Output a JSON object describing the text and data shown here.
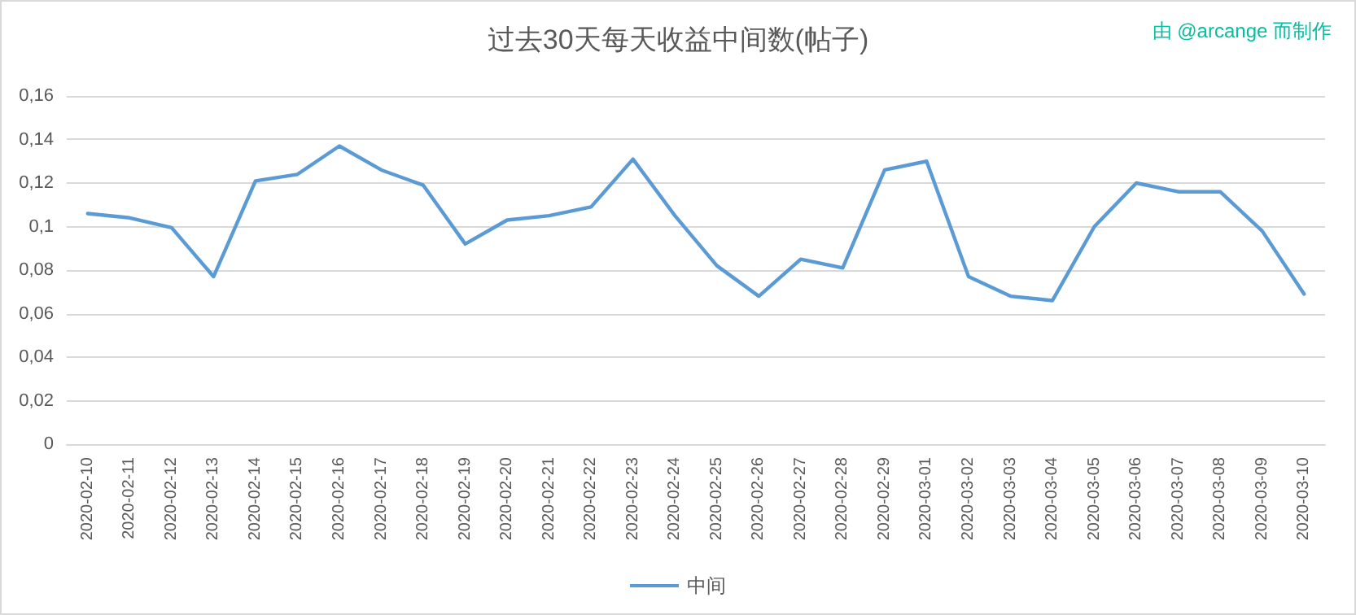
{
  "chart_data": {
    "type": "line",
    "title": "过去30天每天收益中间数(帖子)",
    "annotations": [
      "由 @arcange 而制作"
    ],
    "categories": [
      "2020-02-10",
      "2020-02-11",
      "2020-02-12",
      "2020-02-13",
      "2020-02-14",
      "2020-02-15",
      "2020-02-16",
      "2020-02-17",
      "2020-02-18",
      "2020-02-19",
      "2020-02-20",
      "2020-02-21",
      "2020-02-22",
      "2020-02-23",
      "2020-02-24",
      "2020-02-25",
      "2020-02-26",
      "2020-02-27",
      "2020-02-28",
      "2020-02-29",
      "2020-03-01",
      "2020-03-02",
      "2020-03-03",
      "2020-03-04",
      "2020-03-05",
      "2020-03-06",
      "2020-03-07",
      "2020-03-08",
      "2020-03-09",
      "2020-03-10"
    ],
    "series": [
      {
        "name": "中间",
        "color": "#5b9bd5",
        "values": [
          0.106,
          0.104,
          0.0995,
          0.077,
          0.121,
          0.124,
          0.137,
          0.126,
          0.119,
          0.092,
          0.103,
          0.105,
          0.109,
          0.131,
          0.105,
          0.082,
          0.068,
          0.085,
          0.081,
          0.126,
          0.13,
          0.077,
          0.068,
          0.066,
          0.1,
          0.12,
          0.116,
          0.116,
          0.098,
          0.069
        ]
      }
    ],
    "ylim": [
      0,
      0.16
    ],
    "yticks": [
      {
        "value": 0,
        "label": "0"
      },
      {
        "value": 0.02,
        "label": "0,02"
      },
      {
        "value": 0.04,
        "label": "0,04"
      },
      {
        "value": 0.06,
        "label": "0,06"
      },
      {
        "value": 0.08,
        "label": "0,08"
      },
      {
        "value": 0.1,
        "label": "0,1"
      },
      {
        "value": 0.12,
        "label": "0,12"
      },
      {
        "value": 0.14,
        "label": "0,14"
      },
      {
        "value": 0.16,
        "label": "0,16"
      }
    ],
    "grid": "y",
    "legend": "bottom",
    "marker": "none",
    "line_style": "solid"
  }
}
